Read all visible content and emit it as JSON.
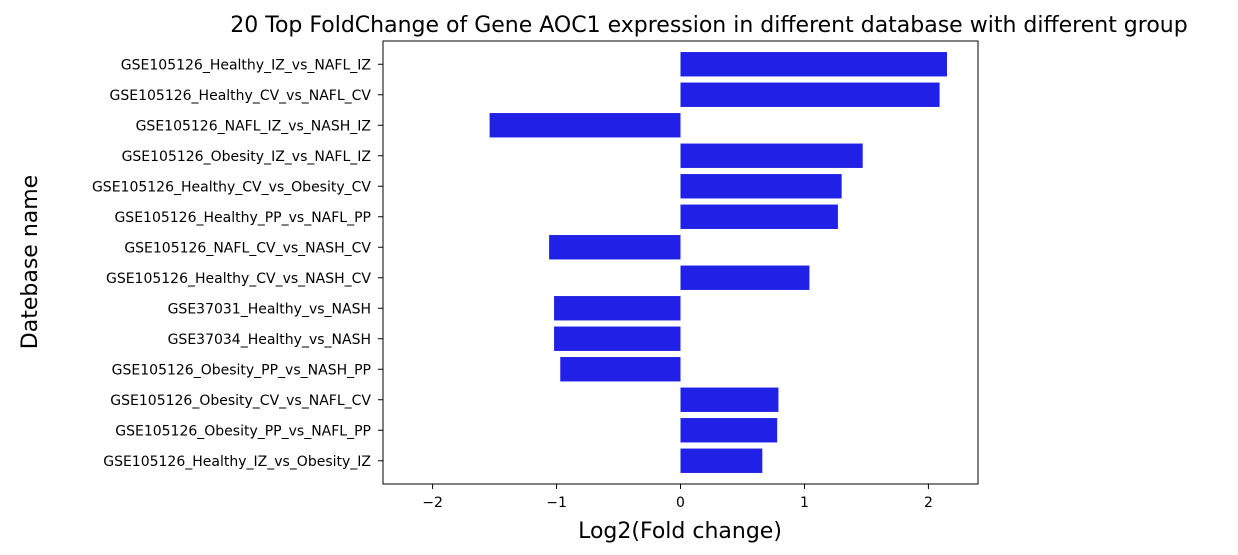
{
  "chart_data": {
    "type": "bar",
    "orientation": "horizontal",
    "title": "20 Top FoldChange of Gene AOC1 expression in different database with different group",
    "xlabel": "Log2(Fold change)",
    "ylabel": "Datebase name",
    "xlim": [
      -2.4,
      2.4
    ],
    "xticks": [
      -2,
      -1,
      0,
      1,
      2
    ],
    "xtick_labels": [
      "−2",
      "−1",
      "0",
      "1",
      "2"
    ],
    "bar_color": "#2020e6",
    "grid": false,
    "categories": [
      "GSE105126_Healthy_IZ_vs_NAFL_IZ",
      "GSE105126_Healthy_CV_vs_NAFL_CV",
      "GSE105126_NAFL_IZ_vs_NASH_IZ",
      "GSE105126_Obesity_IZ_vs_NAFL_IZ",
      "GSE105126_Healthy_CV_vs_Obesity_CV",
      "GSE105126_Healthy_PP_vs_NAFL_PP",
      "GSE105126_NAFL_CV_vs_NASH_CV",
      "GSE105126_Healthy_CV_vs_NASH_CV",
      "GSE37031_Healthy_vs_NASH",
      "GSE37034_Healthy_vs_NASH",
      "GSE105126_Obesity_PP_vs_NASH_PP",
      "GSE105126_Obesity_CV_vs_NAFL_CV",
      "GSE105126_Obesity_PP_vs_NAFL_PP",
      "GSE105126_Healthy_IZ_vs_Obesity_IZ"
    ],
    "values": [
      2.15,
      2.09,
      -1.54,
      1.47,
      1.3,
      1.27,
      -1.06,
      1.04,
      -1.02,
      -1.02,
      -0.97,
      0.79,
      0.78,
      0.66
    ]
  }
}
